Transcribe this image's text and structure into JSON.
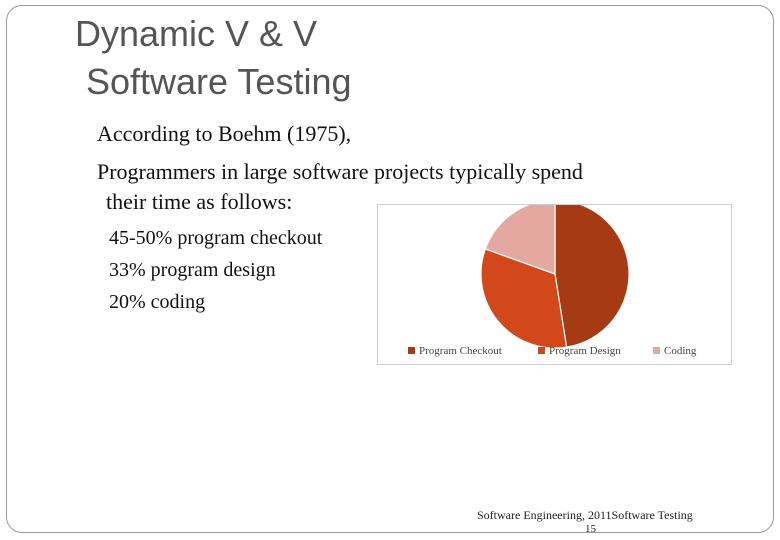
{
  "slide": {
    "title_line1": "Dynamic V & V",
    "title_line2": "Software Testing",
    "bullet_marker": "",
    "bullets": [
      "According to Boehm (1975),",
      "Programmers in large software projects typically spend",
      "their time as follows:"
    ],
    "sub_bullets": [
      "45-50% program checkout",
      "33% program design",
      "20% coding"
    ],
    "footer": "Software Engineering,   2011Software  Testing",
    "page_number": "15"
  },
  "chart_data": {
    "type": "pie",
    "categories": [
      "Program Checkout",
      "Program Design",
      "Coding"
    ],
    "values": [
      47.5,
      33,
      19.5
    ],
    "colors": [
      "#a63a13",
      "#d2481a",
      "#e5a8a0"
    ],
    "legend_position": "bottom"
  }
}
